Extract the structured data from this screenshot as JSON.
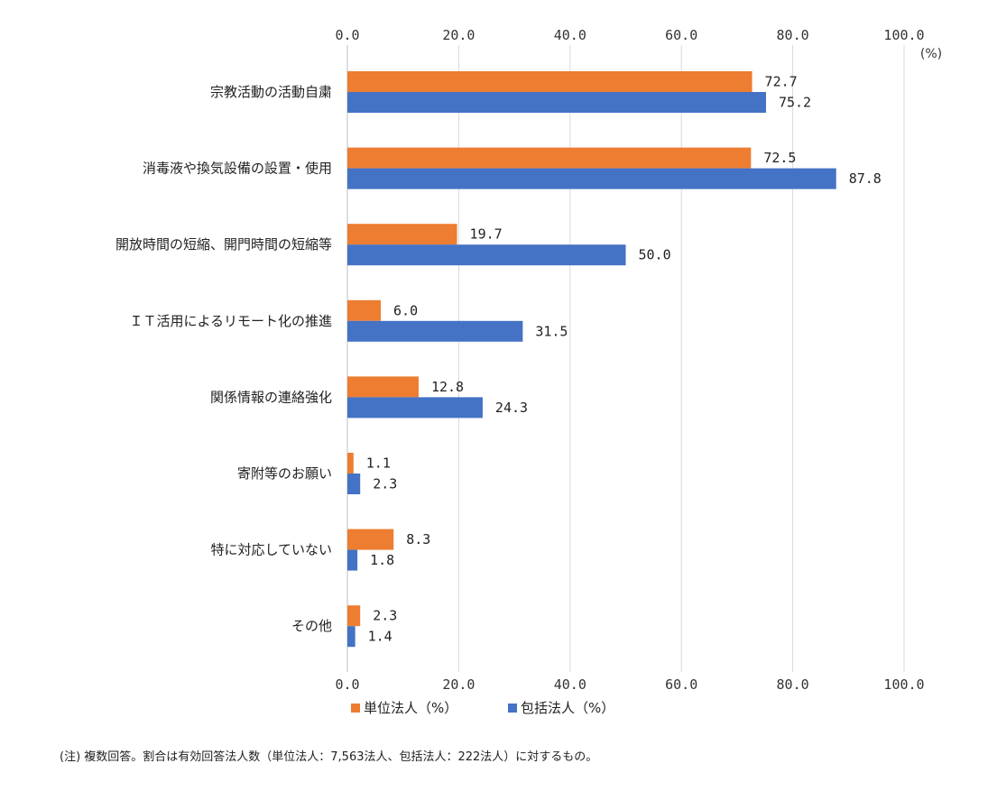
{
  "chart_data": {
    "type": "bar",
    "orientation": "horizontal",
    "categories": [
      "宗教活動の活動自粛",
      "消毒液や換気設備の設置・使用",
      "開放時間の短縮、開門時間の短縮等",
      "ＩＴ活用によるリモート化の推進",
      "関係情報の連絡強化",
      "寄附等のお願い",
      "特に対応していない",
      "その他"
    ],
    "series": [
      {
        "name": "単位法人（%）",
        "color": "#ED7D31",
        "values": [
          72.7,
          72.5,
          19.7,
          6.0,
          12.8,
          1.1,
          8.3,
          2.3
        ]
      },
      {
        "name": "包括法人（%）",
        "color": "#4472C4",
        "values": [
          75.2,
          87.8,
          50.0,
          31.5,
          24.3,
          2.3,
          1.8,
          1.4
        ]
      }
    ],
    "xlim": [
      0,
      100
    ],
    "ticks": [
      "0.0",
      "20.0",
      "40.0",
      "60.0",
      "80.0",
      "100.0"
    ],
    "unit_label": "(%)",
    "grid": true,
    "legend_position": "bottom"
  },
  "note": "(注) 複数回答。割合は有効回答法人数（単位法人：7,563法人、包括法人：222法人）に対するもの。"
}
